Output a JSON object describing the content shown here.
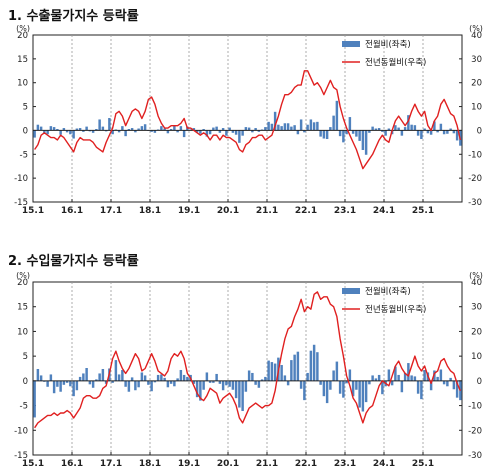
{
  "colors": {
    "bar": "#4f81bd",
    "line": "#e02020",
    "axis": "#222222",
    "grid": "#9a9a9a"
  },
  "chart_data": [
    {
      "type": "bar",
      "title": "1. 수출물가지수 등락률",
      "left_unit": "(%)",
      "right_unit": "(%)",
      "legend_position": "top-right",
      "x_tick_labels": [
        "15.1",
        "16.1",
        "17.1",
        "18.1",
        "19.1",
        "20.1",
        "21.1",
        "22.1",
        "23.1",
        "24.1",
        "25.1"
      ],
      "left_ylim": [
        -15,
        20
      ],
      "left_ticks": [
        -15,
        -10,
        -5,
        0,
        5,
        10,
        15,
        20
      ],
      "right_ylim": [
        -30,
        40
      ],
      "right_ticks": [
        -30,
        -20,
        -10,
        0,
        10,
        20,
        30,
        40
      ],
      "series": [
        {
          "name": "전월비(좌축)",
          "type": "bar",
          "axis": "left",
          "values": [
            -1.5,
            1.2,
            0.8,
            -0.6,
            -0.8,
            0.9,
            0.7,
            0.3,
            -0.9,
            0.5,
            -0.4,
            -0.8,
            -1.7,
            0.4,
            0.5,
            -0.3,
            0.8,
            -0.2,
            -0.5,
            0.3,
            2.3,
            0.8,
            -0.2,
            2.6,
            -0.8,
            0.2,
            -0.4,
            0.9,
            -1.2,
            0.3,
            0.5,
            -0.4,
            0.4,
            0.9,
            1.3,
            -0.1,
            -0.3,
            -0.5,
            0.2,
            0.9,
            0.4,
            -0.6,
            0.3,
            1.1,
            -0.4,
            0.9,
            -1.4,
            0.8,
            0.2,
            0.5,
            -0.4,
            -0.7,
            0.3,
            -1.3,
            -0.8,
            0.6,
            0.8,
            -0.5,
            0.5,
            -1.1,
            0.6,
            -0.5,
            -0.9,
            -2.6,
            -1.1,
            0.7,
            0.6,
            -0.4,
            0.5,
            -0.3,
            0.2,
            0.7,
            1.8,
            1.4,
            3.9,
            1.2,
            0.9,
            1.5,
            1.5,
            0.8,
            1.1,
            -0.8,
            2.3,
            -0.4,
            1.2,
            2.3,
            1.7,
            1.8,
            -1.3,
            -1.7,
            -1.8,
            0.7,
            3.1,
            6.2,
            -1.2,
            -2.5,
            -0.8,
            2.8,
            -0.7,
            -1.3,
            -2.2,
            -4.1,
            -5.1,
            -0.5,
            0.8,
            0.4,
            0.5,
            -0.3,
            -1.1,
            0.4,
            -0.8,
            1.1,
            0.6,
            -1.1,
            0.7,
            3.2,
            1.2,
            1.1,
            -1.1,
            -1.8,
            0.4,
            -0.6,
            -0.9,
            1.9,
            -0.4,
            1.4,
            -0.8,
            -0.7,
            0.4,
            -0.6,
            -2.1,
            -3.2
          ]
        },
        {
          "name": "전년동월비(우축)",
          "type": "line",
          "axis": "right",
          "values": [
            -8,
            -6,
            -2,
            -1,
            -2,
            -3,
            -3,
            -4,
            -2,
            -3,
            -5,
            -7,
            -9,
            -5,
            -3,
            -4,
            -4,
            -4,
            -5,
            -7,
            -8,
            -9,
            -5,
            -2,
            1,
            7,
            8,
            6,
            2,
            5,
            8,
            9,
            8,
            5,
            8,
            13,
            14,
            11,
            6,
            3,
            1,
            1,
            2,
            2,
            2,
            3,
            5,
            1,
            1,
            0,
            -1,
            -2,
            -1,
            -2,
            -4,
            -2,
            -2,
            -4,
            -2,
            -3,
            -3,
            -4,
            -5,
            -8,
            -9,
            -6,
            -5,
            -3,
            -3,
            -2,
            -2,
            -4,
            -3,
            -2,
            2,
            6,
            11,
            15,
            15,
            16,
            18,
            19,
            19,
            25,
            25,
            22,
            19,
            20,
            18,
            15,
            18,
            21,
            18,
            17,
            10,
            5,
            1,
            -2,
            -5,
            -8,
            -12,
            -16,
            -14,
            -12,
            -10,
            -7,
            -4,
            -2,
            -4,
            -5,
            0,
            4,
            6,
            4,
            2,
            4,
            8,
            11,
            8,
            6,
            8,
            2,
            0,
            4,
            6,
            11,
            13,
            10,
            7,
            6,
            2,
            -4
          ]
        }
      ]
    },
    {
      "type": "bar",
      "title": "2. 수입물가지수 등락률",
      "left_unit": "(%)",
      "right_unit": "(%)",
      "legend_position": "top-right",
      "x_tick_labels": [
        "15.1",
        "16.1",
        "17.1",
        "18.1",
        "19.1",
        "20.1",
        "21.1",
        "22.1",
        "23.1",
        "24.1",
        "25.1"
      ],
      "left_ylim": [
        -15,
        20
      ],
      "left_ticks": [
        -15,
        -10,
        -5,
        0,
        5,
        10,
        15,
        20
      ],
      "right_ylim": [
        -30,
        40
      ],
      "right_ticks": [
        -30,
        -20,
        -10,
        0,
        10,
        20,
        30,
        40
      ],
      "series": [
        {
          "name": "전월비(좌축)",
          "type": "bar",
          "axis": "left",
          "values": [
            -7.4,
            2.4,
            1.1,
            -0.2,
            -1.2,
            1.3,
            -2.5,
            -1.2,
            -2.2,
            -0.8,
            -0.4,
            -1.1,
            -3.1,
            -1.9,
            0.8,
            1.5,
            2.6,
            -0.7,
            -1.4,
            0.3,
            1.5,
            2.4,
            -0.6,
            2.5,
            -0.4,
            4.2,
            1.3,
            2.2,
            -1.2,
            -2.2,
            0.7,
            -1.9,
            -1.3,
            1.7,
            1.1,
            -0.8,
            -2.1,
            -0.3,
            1.2,
            1.3,
            0.6,
            -1.3,
            -0.6,
            -1.1,
            0.5,
            2.2,
            1.2,
            0.8,
            1.2,
            -0.6,
            -3.3,
            -4.0,
            -1.8,
            1.7,
            -0.4,
            -0.4,
            1.4,
            -0.6,
            -1.9,
            -0.9,
            -1.2,
            -1.8,
            -3.5,
            -5.4,
            -6.1,
            -2.2,
            2.1,
            1.6,
            -0.8,
            -1.4,
            0.3,
            0.8,
            4.1,
            3.8,
            3.5,
            4.7,
            3.2,
            1.1,
            -0.9,
            4.2,
            5.3,
            5.9,
            -1.6,
            -3.9,
            1.6,
            6.1,
            7.3,
            5.8,
            -0.8,
            -3.1,
            -4.5,
            -1.8,
            2.1,
            3.9,
            -2.6,
            -3.4,
            -0.5,
            2.3,
            -3.1,
            -1.8,
            -5.4,
            -6.2,
            -4.3,
            -0.7,
            1.1,
            0.5,
            1.2,
            -2.7,
            -1.1,
            2.3,
            -0.9,
            2.9,
            1.2,
            -2.3,
            1.6,
            3.6,
            1.1,
            0.9,
            -2.6,
            -3.7,
            2.2,
            1.7,
            -1.9,
            2.1,
            0.8,
            2.3,
            -0.7,
            -1.1,
            0.6,
            -1.7,
            -3.4,
            -3.9
          ]
        },
        {
          "name": "전년동월비(우축)",
          "type": "line",
          "axis": "right",
          "values": [
            -19,
            -17,
            -16,
            -15,
            -14,
            -14,
            -13,
            -14,
            -13,
            -13,
            -12,
            -13,
            -15,
            -13,
            -11,
            -7,
            -6,
            -6,
            -7,
            -7,
            -6,
            -3,
            -2,
            3,
            9,
            12,
            8,
            5,
            3,
            5,
            8,
            11,
            9,
            4,
            5,
            8,
            11,
            8,
            4,
            3,
            2,
            4,
            9,
            11,
            10,
            12,
            9,
            3,
            1,
            -2,
            -5,
            -7,
            -8,
            -6,
            -3,
            -4,
            -5,
            -9,
            -7,
            -6,
            -5,
            -7,
            -10,
            -15,
            -17,
            -14,
            -11,
            -10,
            -9,
            -10,
            -11,
            -10,
            -10,
            -9,
            -4,
            4,
            11,
            17,
            21,
            22,
            26,
            29,
            33,
            28,
            30,
            29,
            35,
            36,
            33,
            34,
            34,
            31,
            30,
            26,
            17,
            10,
            2,
            -2,
            -7,
            -9,
            -13,
            -17,
            -13,
            -11,
            -10,
            -6,
            -2,
            0,
            -1,
            -2,
            2,
            6,
            8,
            5,
            3,
            2,
            6,
            10,
            6,
            4,
            6,
            2,
            -1,
            3,
            4,
            8,
            9,
            6,
            4,
            3,
            -1,
            -4
          ]
        }
      ]
    }
  ]
}
